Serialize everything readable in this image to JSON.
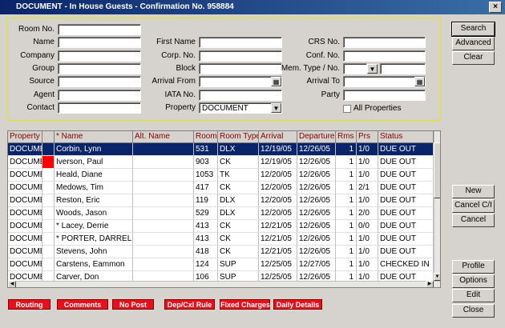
{
  "window": {
    "title": "DOCUMENT - In House Guests - Confirmation No. 958884"
  },
  "search_form": {
    "fields": [
      {
        "label": "Room No."
      },
      {
        "label": "Name"
      },
      {
        "label": "Company"
      },
      {
        "label": "Group"
      },
      {
        "label": "Source"
      },
      {
        "label": "Agent"
      },
      {
        "label": "Contact"
      },
      {
        "label": "First Name"
      },
      {
        "label": "Corp. No."
      },
      {
        "label": "Block"
      },
      {
        "label": "Arrival From"
      },
      {
        "label": "IATA No."
      },
      {
        "label": "Property",
        "value": "DOCUMENT"
      },
      {
        "label": "CRS No."
      },
      {
        "label": "Conf. No."
      },
      {
        "label": "Mem. Type / No."
      },
      {
        "label": "Arrival To"
      },
      {
        "label": "Party"
      }
    ],
    "checkbox_label": "All Properties"
  },
  "table": {
    "columns": [
      "Property",
      "* Name",
      "Alt. Name",
      "Room",
      "Room Type",
      "Arrival",
      "Departure",
      "Rms",
      "Prs",
      "Status"
    ],
    "selected_row": 0,
    "rows": [
      {
        "property": "DOCUME",
        "name": "Corbin, Lynn",
        "room": "531",
        "room_type": "DLX",
        "arrival": "12/19/05",
        "departure": "12/26/05",
        "rms": 1,
        "prs": "1/0",
        "status": "DUE OUT"
      },
      {
        "property": "DOCUME",
        "flagged": true,
        "name": "Iverson, Paul",
        "room": "903",
        "room_type": "CK",
        "arrival": "12/19/05",
        "departure": "12/26/05",
        "rms": 1,
        "prs": "1/0",
        "status": "DUE OUT"
      },
      {
        "property": "DOCUME",
        "name": "Heald, Diane",
        "room": "1053",
        "room_type": "TK",
        "arrival": "12/20/05",
        "departure": "12/26/05",
        "rms": 1,
        "prs": "1/0",
        "status": "DUE OUT"
      },
      {
        "property": "DOCUME",
        "name": "Medows, Tim",
        "room": "417",
        "room_type": "CK",
        "arrival": "12/20/05",
        "departure": "12/26/05",
        "rms": 1,
        "prs": "2/1",
        "status": "DUE OUT"
      },
      {
        "property": "DOCUME",
        "name": "Reston, Eric",
        "room": "119",
        "room_type": "DLX",
        "arrival": "12/20/05",
        "departure": "12/26/05",
        "rms": 1,
        "prs": "1/0",
        "status": "DUE OUT"
      },
      {
        "property": "DOCUME",
        "name": "Woods, Jason",
        "room": "529",
        "room_type": "DLX",
        "arrival": "12/20/05",
        "departure": "12/26/05",
        "rms": 1,
        "prs": "2/0",
        "status": "DUE OUT"
      },
      {
        "property": "DOCUME",
        "name": "* Lacey, Derrie",
        "room": "413",
        "room_type": "CK",
        "arrival": "12/21/05",
        "departure": "12/26/05",
        "rms": 1,
        "prs": "0/0",
        "status": "DUE OUT"
      },
      {
        "property": "DOCUME",
        "name": "* PORTER, DARREL",
        "room": "413",
        "room_type": "CK",
        "arrival": "12/21/05",
        "departure": "12/26/05",
        "rms": 1,
        "prs": "1/0",
        "status": "DUE OUT"
      },
      {
        "property": "DOCUME",
        "name": "Stevens, John",
        "room": "418",
        "room_type": "CK",
        "arrival": "12/21/05",
        "departure": "12/26/05",
        "rms": 1,
        "prs": "1/0",
        "status": "DUE OUT"
      },
      {
        "property": "DOCUME",
        "name": "Carstens, Eammon",
        "room": "124",
        "room_type": "SUP",
        "arrival": "12/25/05",
        "departure": "12/27/05",
        "rms": 1,
        "prs": "1/0",
        "status": "CHECKED IN"
      },
      {
        "property": "DOCUME",
        "name": "Carver, Don",
        "room": "106",
        "room_type": "SUP",
        "arrival": "12/25/05",
        "departure": "12/26/05",
        "rms": 1,
        "prs": "1/0",
        "status": "DUE OUT"
      }
    ]
  },
  "right_buttons": [
    "Search",
    "Advanced",
    "Clear",
    "New",
    "Cancel C/I",
    "Cancel",
    "Profile",
    "Options",
    "Edit",
    "Close"
  ],
  "bottom_buttons": [
    "Routing",
    "Comments",
    "No Post",
    "Dep/Cxl Rule",
    "Fixed Charges",
    "Daily Details"
  ]
}
